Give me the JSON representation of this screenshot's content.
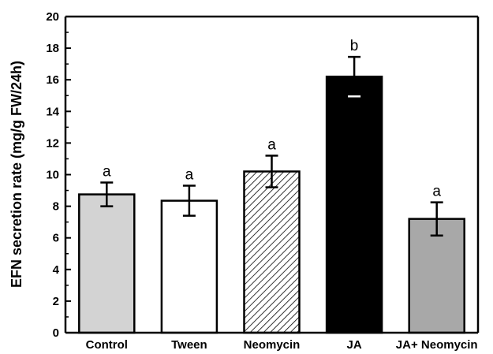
{
  "chart_data": {
    "type": "bar",
    "title": "",
    "xlabel": "",
    "ylabel": "EFN secretion rate (mg/g FW/24h)",
    "ylim": [
      0,
      20
    ],
    "yticks": [
      0,
      2,
      4,
      6,
      8,
      10,
      12,
      14,
      16,
      18,
      20
    ],
    "categories": [
      "Control",
      "Tween",
      "Neomycin",
      "JA",
      "JA+ Neomycin"
    ],
    "values": [
      8.75,
      8.35,
      10.2,
      16.2,
      7.2
    ],
    "errors": [
      0.75,
      0.95,
      1.0,
      1.25,
      1.05
    ],
    "significance": [
      "a",
      "a",
      "a",
      "b",
      "a"
    ],
    "fills": [
      "#d3d3d3",
      "#ffffff",
      "hatch",
      "#000000",
      "#a8a8a8"
    ],
    "grid": false,
    "legend": "none"
  }
}
